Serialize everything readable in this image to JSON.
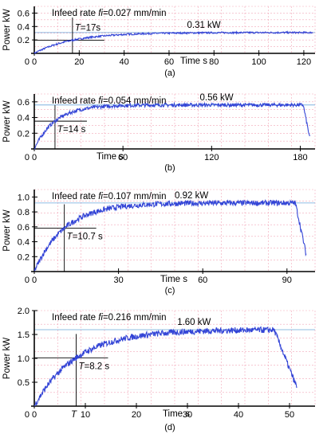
{
  "chart_data": [
    {
      "type": "line",
      "caption": "(a)",
      "ylabel": "Power kW",
      "xlabel": "Time s",
      "annotation": "Infeed rate fi=0.027 mm/min",
      "t_label": "T=17s",
      "steady_label": "0.31 kW",
      "xlim": [
        0,
        125
      ],
      "ylim": [
        0,
        0.7
      ],
      "xticks": [
        0,
        20,
        40,
        60,
        80,
        100,
        120
      ],
      "yticks": [
        0.2,
        0.4,
        0.6
      ],
      "steady": 0.31,
      "tau": 17,
      "end": 124,
      "drop": false,
      "series": [
        {
          "x": [
            0,
            10,
            17,
            25,
            40,
            60,
            80,
            100,
            124
          ],
          "y": [
            0.0,
            0.14,
            0.2,
            0.25,
            0.28,
            0.3,
            0.31,
            0.31,
            0.31
          ]
        }
      ]
    },
    {
      "type": "line",
      "caption": "(b)",
      "ylabel": "Power kW",
      "xlabel": "Time s",
      "annotation": "Infeed rate fi=0.054 mm/min",
      "t_label": "T=14 s",
      "steady_label": "0.56 kW",
      "xlim": [
        0,
        190
      ],
      "ylim": [
        0,
        0.7
      ],
      "xticks": [
        0,
        60,
        120,
        180
      ],
      "yticks": [
        0.2,
        0.4,
        0.6
      ],
      "steady": 0.56,
      "tau": 14,
      "end": 182,
      "drop": true,
      "series": [
        {
          "x": [
            0,
            14,
            30,
            60,
            120,
            175,
            182,
            185
          ],
          "y": [
            0.0,
            0.37,
            0.43,
            0.48,
            0.53,
            0.56,
            0.5,
            0.3
          ]
        }
      ]
    },
    {
      "type": "line",
      "caption": "(c)",
      "ylabel": "Power kW",
      "xlabel": "Time s",
      "annotation": "Infeed rate fi=0.107 mm/min",
      "t_label": "T=10.7 s",
      "steady_label": "0.92 kW",
      "xlim": [
        0,
        100
      ],
      "ylim": [
        0,
        1.1
      ],
      "xticks": [
        0,
        30,
        60,
        90
      ],
      "yticks": [
        0.2,
        0.4,
        0.6,
        0.8,
        1.0
      ],
      "steady": 0.92,
      "tau": 10.7,
      "end": 93,
      "drop": true,
      "series": [
        {
          "x": [
            0,
            10.7,
            20,
            40,
            60,
            90,
            93,
            97
          ],
          "y": [
            0.0,
            0.57,
            0.68,
            0.78,
            0.84,
            0.9,
            0.85,
            0.15
          ]
        }
      ]
    },
    {
      "type": "line",
      "caption": "(d)",
      "ylabel": "Power kW",
      "xlabel": "Time s",
      "annotation": "Infeed rate fi=0.216 mm/min",
      "t_label": "T=8.2 s",
      "t_axis_label": "T",
      "steady_label": "1.60 kW",
      "xlim": [
        0,
        55
      ],
      "ylim": [
        0,
        2.0
      ],
      "xticks": [
        0,
        10,
        20,
        30,
        40,
        50
      ],
      "yticks": [
        0.5,
        1.0,
        1.5,
        2.0
      ],
      "steady": 1.6,
      "tau": 8.2,
      "end": 47,
      "drop": true,
      "series": [
        {
          "x": [
            0,
            8.2,
            15,
            25,
            35,
            47,
            50,
            52
          ],
          "y": [
            0.0,
            1.0,
            1.25,
            1.42,
            1.52,
            1.6,
            1.2,
            0.7
          ]
        }
      ]
    }
  ]
}
